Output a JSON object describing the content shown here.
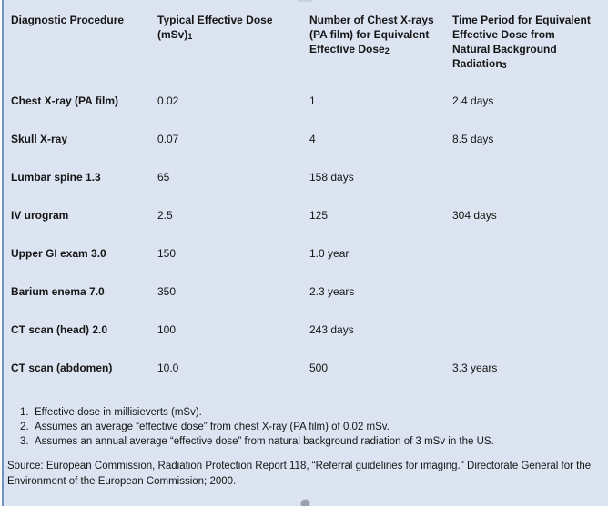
{
  "colors": {
    "background": "#dce3f1",
    "left_border": "#7291c4",
    "handle": "#9aa0b0",
    "text": "#161616"
  },
  "table": {
    "headers": [
      {
        "label": "Diagnostic Procedure",
        "note": ""
      },
      {
        "label": "Typical Effective Dose\n(mSv)",
        "note": "1"
      },
      {
        "label": "Number of Chest X-rays\n(PA film) for Equivalent\nEffective Dose",
        "note": "2"
      },
      {
        "label": "Time Period for Equivalent\nEffective Dose from\nNatural Background\nRadiation",
        "note": "3"
      }
    ]
  },
  "chart_data": {
    "type": "table",
    "title": "",
    "columns": [
      "Diagnostic Procedure",
      "Typical Effective Dose (mSv)",
      "Number of Chest X-rays (PA film) for Equivalent Effective Dose",
      "Time Period for Equivalent Effective Dose from Natural Background Radiation"
    ],
    "rows": [
      [
        "Chest X-ray (PA film)",
        "0.02",
        "1",
        "2.4 days"
      ],
      [
        "Skull X-ray",
        "0.07",
        "4",
        "8.5 days"
      ],
      [
        "Lumbar spine 1.3",
        "65",
        "158 days",
        ""
      ],
      [
        "IV urogram",
        "2.5",
        "125",
        "304 days"
      ],
      [
        "Upper GI exam 3.0",
        "150",
        "1.0 year",
        ""
      ],
      [
        "Barium enema 7.0",
        "350",
        "2.3 years",
        ""
      ],
      [
        "CT scan (head) 2.0",
        "100",
        "243 days",
        ""
      ],
      [
        "CT scan (abdomen)",
        "10.0",
        "500",
        "3.3 years"
      ]
    ]
  },
  "footnotes": [
    {
      "num": "1.",
      "text": "Effective dose in millisieverts (mSv)."
    },
    {
      "num": "2.",
      "text": "Assumes an average “effective dose” from chest X-ray (PA film) of 0.02 mSv."
    },
    {
      "num": "3.",
      "text": "Assumes an annual average “effective dose” from natural background radiation of 3 mSv in the US."
    }
  ],
  "source": "Source: European Commission, Radiation Protection Report 118, “Referral guidelines for imaging.\" Directorate General for the Environment of the European Commission; 2000."
}
